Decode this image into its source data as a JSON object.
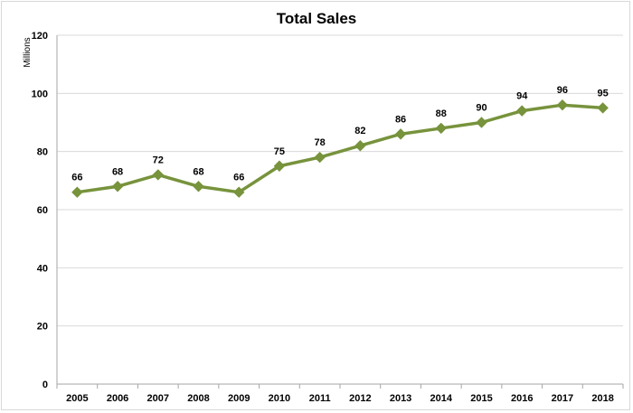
{
  "chart_data": {
    "type": "line",
    "title": "Total Sales",
    "ylabel": "Millions",
    "xlabel": "",
    "ylim": [
      0,
      120
    ],
    "yticks": [
      0,
      20,
      40,
      60,
      80,
      100,
      120
    ],
    "grid": true,
    "legend": "none",
    "line_color": "#77933c",
    "categories": [
      "2005",
      "2006",
      "2007",
      "2008",
      "2009",
      "2010",
      "2011",
      "2012",
      "2013",
      "2014",
      "2015",
      "2016",
      "2017",
      "2018"
    ],
    "series": [
      {
        "values": [
          66,
          68,
          72,
          68,
          66,
          75,
          78,
          82,
          86,
          88,
          90,
          94,
          96,
          95
        ],
        "labels": [
          "66",
          "68",
          "72",
          "68",
          "66",
          "75",
          "78",
          "82",
          "86",
          "88",
          "90",
          "94",
          "96",
          "95"
        ]
      }
    ]
  }
}
